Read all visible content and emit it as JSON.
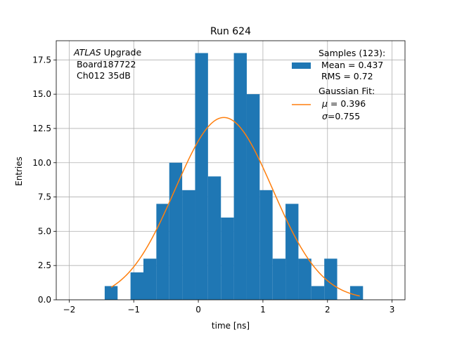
{
  "chart_data": {
    "type": "bar",
    "title": "Run 624",
    "xlabel": "time [ns]",
    "ylabel": "Entries",
    "xlim": [
      -2.2,
      3.2
    ],
    "ylim": [
      0,
      18.9
    ],
    "xticks": [
      -2,
      -1,
      0,
      1,
      2,
      3
    ],
    "xtick_labels": [
      "−2",
      "−1",
      "0",
      "1",
      "2",
      "3"
    ],
    "yticks": [
      0,
      2.5,
      5,
      7.5,
      10,
      12.5,
      15,
      17.5
    ],
    "ytick_labels": [
      "0.0",
      "2.5",
      "5.0",
      "7.5",
      "10.0",
      "12.5",
      "15.0",
      "17.5"
    ],
    "grid": true,
    "bin_edges": [
      -1.45,
      -1.25,
      -1.05,
      -0.85,
      -0.65,
      -0.45,
      -0.25,
      -0.05,
      0.15,
      0.35,
      0.55,
      0.75,
      0.95,
      1.15,
      1.35,
      1.55,
      1.75,
      1.95,
      2.15,
      2.35,
      2.55
    ],
    "counts": [
      1,
      0,
      2,
      3,
      7,
      10,
      8,
      18,
      9,
      6,
      18,
      15,
      8,
      3,
      7,
      3,
      1,
      3,
      0,
      1
    ],
    "series": [
      {
        "name": "Samples (123):",
        "stats": [
          " Mean = 0.437",
          " RMS = 0.72"
        ],
        "color": "#1f77b4"
      },
      {
        "name": "Gaussian Fit:",
        "stats": [
          "μ = 0.396",
          "σ=0.755"
        ],
        "color": "#ff7f0e"
      }
    ],
    "fit": {
      "amplitude": 13.3,
      "mu": 0.396,
      "sigma": 0.755,
      "x_start": -1.35,
      "x_end": 2.5
    },
    "legend_position": "top-right",
    "annotation": {
      "italic": "ATLAS",
      "rest": " Upgrade",
      "line2": " Board187722",
      "line3": " Ch012 35dB"
    }
  }
}
